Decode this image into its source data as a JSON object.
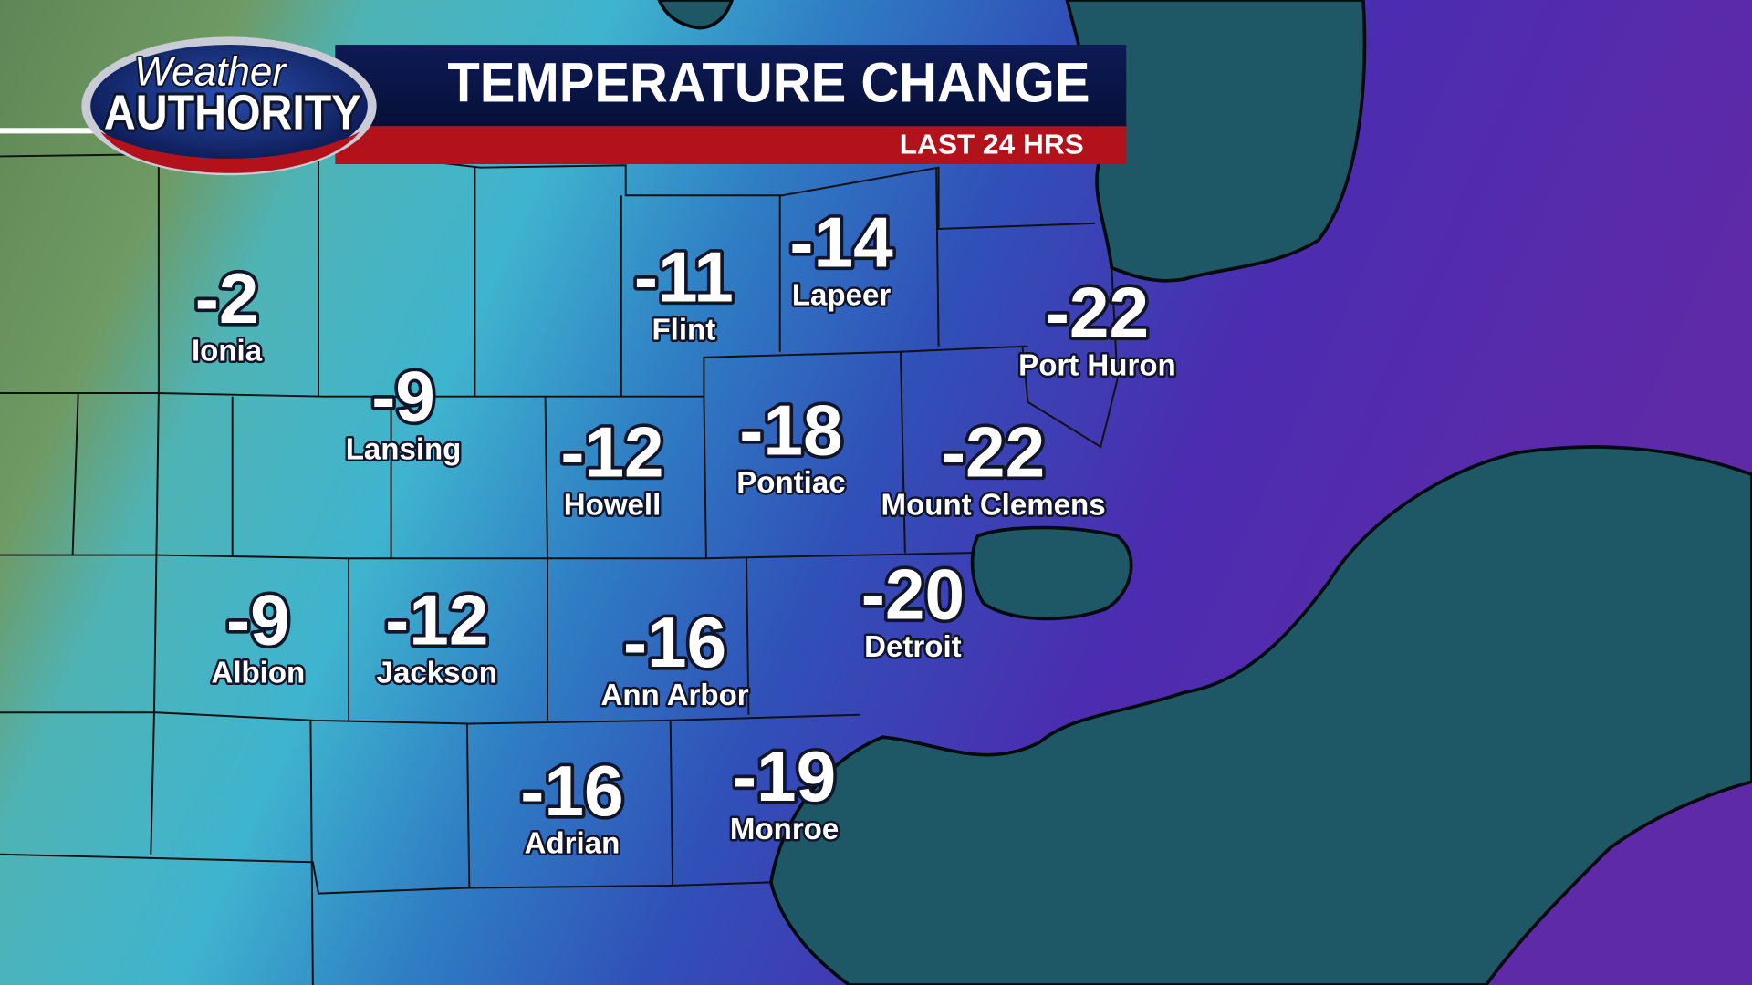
{
  "header": {
    "logo": {
      "line1": "Weather",
      "line2": "AUTHORITY"
    },
    "title": "TEMPERATURE CHANGE",
    "subtitle": "LAST 24 HRS"
  },
  "cities": [
    {
      "name": "Ionia",
      "change": -2
    },
    {
      "name": "Lansing",
      "change": -9
    },
    {
      "name": "Flint",
      "change": -11
    },
    {
      "name": "Lapeer",
      "change": -14
    },
    {
      "name": "Port Huron",
      "change": -22
    },
    {
      "name": "Howell",
      "change": -12
    },
    {
      "name": "Pontiac",
      "change": -18
    },
    {
      "name": "Mount Clemens",
      "change": -22
    },
    {
      "name": "Albion",
      "change": -9
    },
    {
      "name": "Jackson",
      "change": -12
    },
    {
      "name": "Ann Arbor",
      "change": -16
    },
    {
      "name": "Detroit",
      "change": -20
    },
    {
      "name": "Adrian",
      "change": -16
    },
    {
      "name": "Monroe",
      "change": -19
    }
  ]
}
